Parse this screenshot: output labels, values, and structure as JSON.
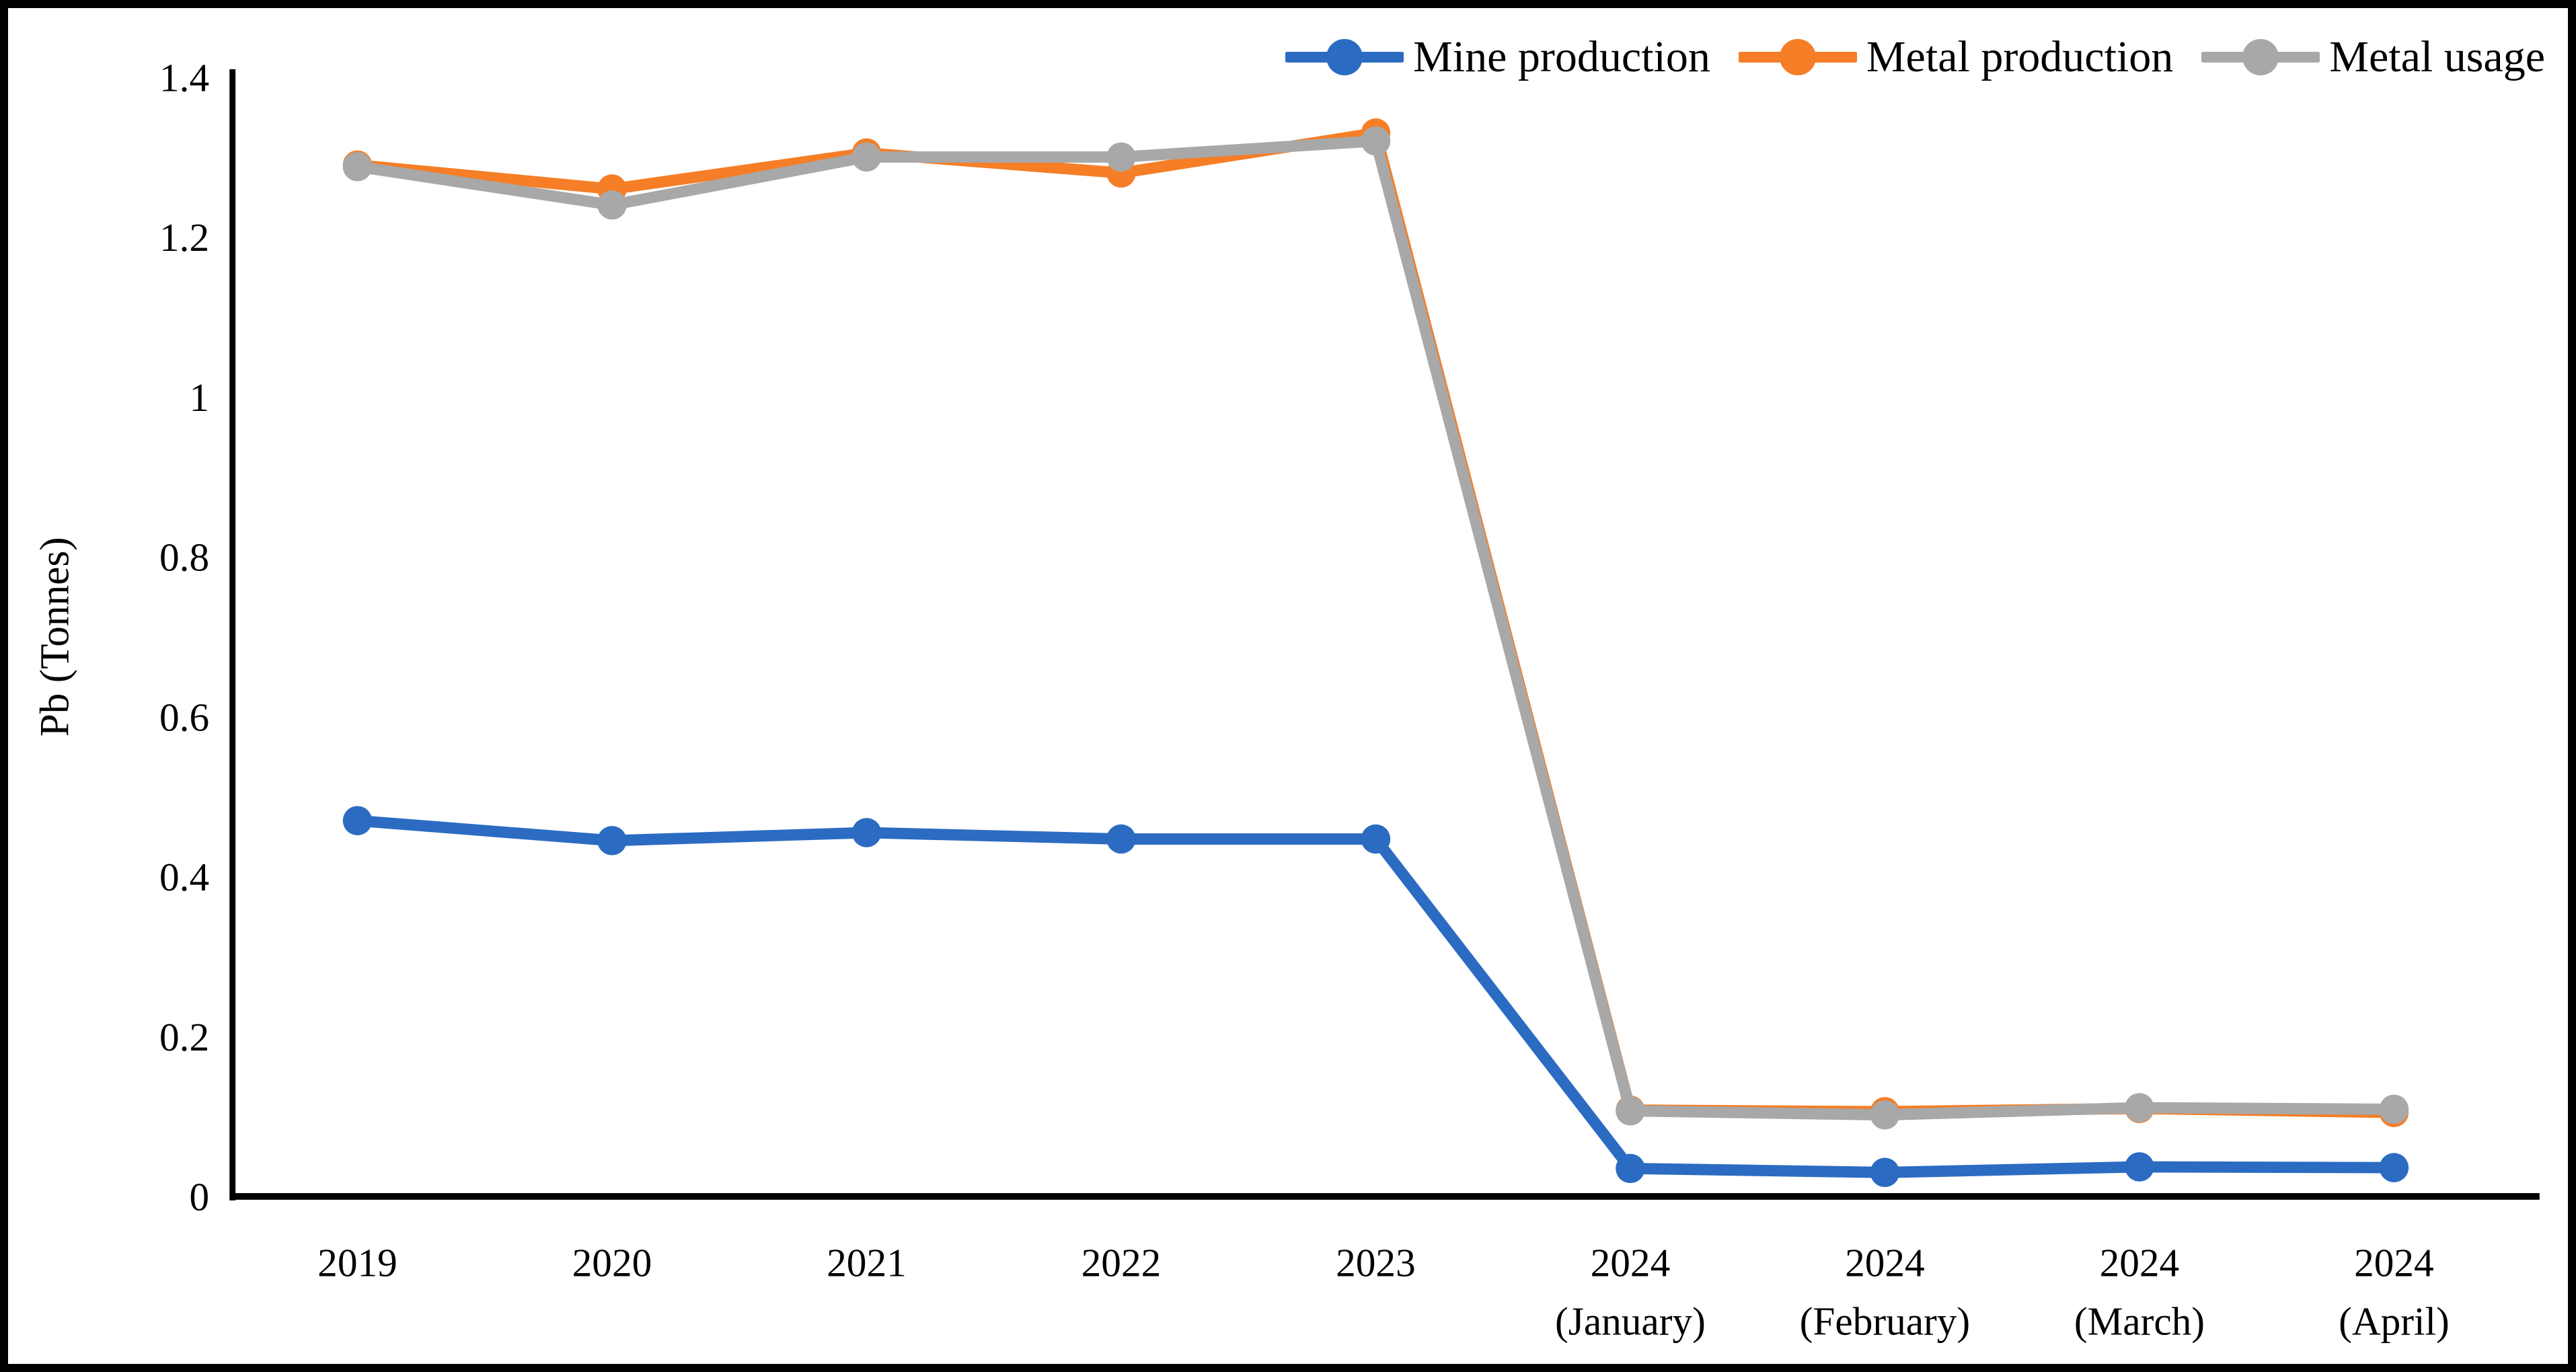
{
  "figure": {
    "background": "#ffffff",
    "border_color": "#000000",
    "text_color": "#000000"
  },
  "chart_data": {
    "type": "line",
    "title": "",
    "xlabel": "",
    "ylabel": "Pb (Tonnes)",
    "ylim": [
      0,
      1.4
    ],
    "ytick_values": [
      0,
      0.2,
      0.4,
      0.6,
      0.8,
      1,
      1.2,
      1.4
    ],
    "yticks": [
      "0",
      "0.2",
      "0.4",
      "0.6",
      "0.8",
      "1",
      "1.2",
      "1.4"
    ],
    "categories": [
      "2019",
      "2020",
      "2021",
      "2022",
      "2023",
      "2024\n(January)",
      "2024\n(February)",
      "2024\n(March)",
      "2024\n(April)"
    ],
    "grid": false,
    "marker": "circle",
    "legend_position": "top-right",
    "legend_marker": "line-with-circle-icon",
    "series": [
      {
        "name": "Mine production",
        "color": "#2B6BC2",
        "values": [
          0.47,
          0.445,
          0.455,
          0.447,
          0.447,
          0.035,
          0.03,
          0.037,
          0.036
        ]
      },
      {
        "name": "Metal production",
        "color": "#F57E27",
        "values": [
          1.29,
          1.26,
          1.305,
          1.28,
          1.33,
          0.108,
          0.106,
          0.11,
          0.105
        ]
      },
      {
        "name": "Metal usage",
        "color": "#A8A8A8",
        "values": [
          1.288,
          1.24,
          1.3,
          1.3,
          1.32,
          0.107,
          0.102,
          0.111,
          0.109
        ]
      }
    ]
  }
}
